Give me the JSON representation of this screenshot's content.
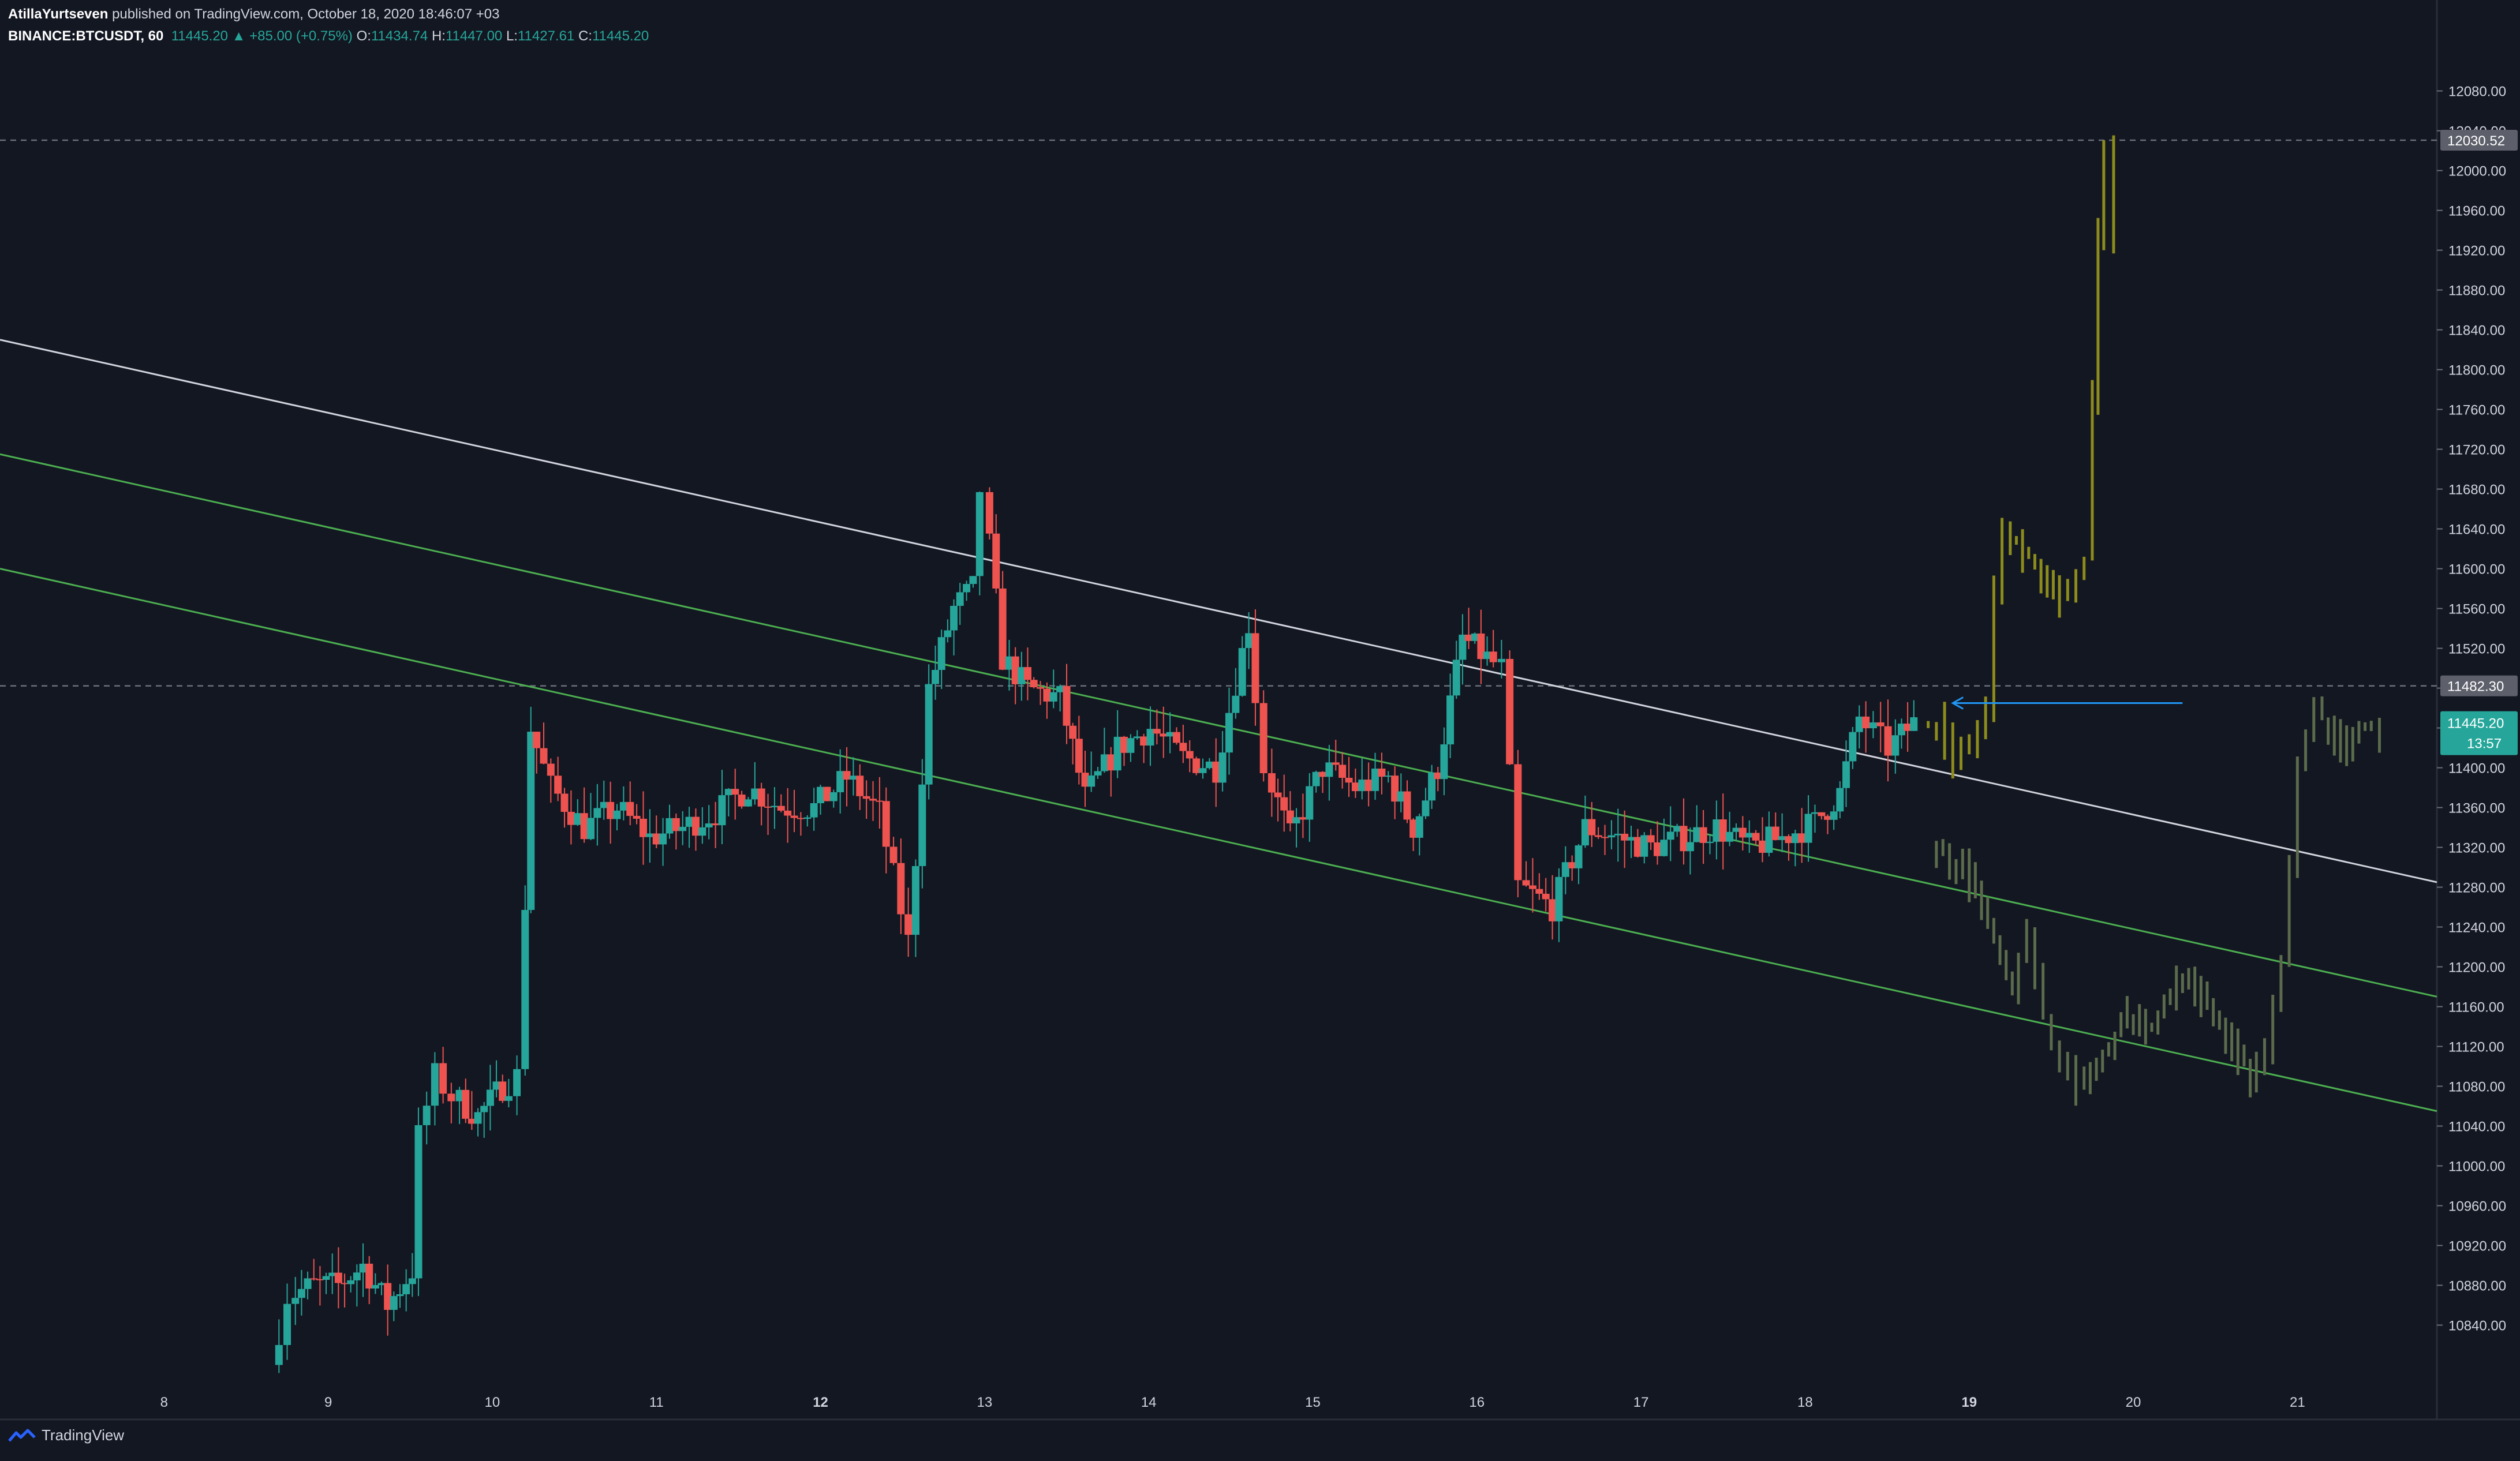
{
  "header": {
    "author": "AtillaYurtseven",
    "published": "published on TradingView.com, October 18, 2020 18:46:07 +03",
    "symbol": "BINANCE:BTCUSDT, 60",
    "last": "11445.20",
    "change": "▲ +85.00 (+0.75%)",
    "o_label": "O:",
    "o_val": "11434.74",
    "h_label": "H:",
    "h_val": "11447.00",
    "l_label": "L:",
    "l_val": "11427.61",
    "c_label": "C:",
    "c_val": "11445.20"
  },
  "footer": {
    "brand": "TradingView"
  },
  "colors": {
    "background": "#131722",
    "up": "#26a69a",
    "down": "#ef5350",
    "trend_white": "#d1d4dc",
    "trend_green": "#4caf50",
    "projection_olive": "#8c8c1c",
    "projection_grey": "#5b6b4b",
    "arrow_blue": "#2196f3"
  },
  "chart_data": {
    "type": "candlestick",
    "symbol": "BINANCE:BTCUSDT",
    "interval": "60",
    "ylim": [
      10780,
      12125
    ],
    "x_range_days": [
      7.0,
      21.85
    ],
    "y_ticks": [
      10840,
      10880,
      10920,
      10960,
      11000,
      11040,
      11080,
      11120,
      11160,
      11200,
      11240,
      11280,
      11320,
      11360,
      11400,
      11440,
      11480,
      11520,
      11560,
      11600,
      11640,
      11680,
      11720,
      11760,
      11800,
      11840,
      11880,
      11920,
      11960,
      12000,
      12040,
      12080
    ],
    "y_tick_labels": [
      "10840.00",
      "10880.00",
      "10920.00",
      "10960.00",
      "11000.00",
      "11040.00",
      "11080.00",
      "11120.00",
      "11160.00",
      "11200.00",
      "11240.00",
      "11280.00",
      "11320.00",
      "11360.00",
      "11400.00",
      "11440.00",
      "11480.00",
      "11520.00",
      "11560.00",
      "11600.00",
      "11640.00",
      "11680.00",
      "11720.00",
      "11760.00",
      "11800.00",
      "11840.00",
      "11880.00",
      "11920.00",
      "11960.00",
      "12000.00",
      "12040.00",
      "12080.00"
    ],
    "x_ticks": [
      8,
      9,
      10,
      11,
      12,
      13,
      14,
      15,
      16,
      17,
      18,
      19,
      20,
      21
    ],
    "x_tick_labels": [
      "8",
      "9",
      "10",
      "11",
      "12",
      "13",
      "14",
      "15",
      "16",
      "17",
      "18",
      "19",
      "20",
      "21"
    ],
    "x_tick_bold": [
      "12",
      "19"
    ],
    "horizontal_levels": [
      {
        "price": 12030.52,
        "label": "12030.52",
        "style": "dashed"
      },
      {
        "price": 11482.3,
        "label": "11482.30",
        "style": "dashed"
      }
    ],
    "current_price": {
      "price": 11445.2,
      "label": "11445.20",
      "countdown": "13:57"
    },
    "trendlines": [
      {
        "color": "white",
        "points": [
          [
            7.0,
            11830
          ],
          [
            21.85,
            11285
          ]
        ]
      },
      {
        "color": "green",
        "points": [
          [
            7.0,
            11715
          ],
          [
            21.85,
            11170
          ]
        ]
      },
      {
        "color": "green",
        "points": [
          [
            7.0,
            11600
          ],
          [
            21.85,
            11055
          ]
        ]
      }
    ],
    "arrow": {
      "from": [
        20.3,
        11465
      ],
      "to": [
        18.9,
        11465
      ]
    },
    "candle_anchors": [
      [
        8.7,
        10800
      ],
      [
        8.8,
        10870
      ],
      [
        8.95,
        10880
      ],
      [
        9.1,
        10880
      ],
      [
        9.25,
        10900
      ],
      [
        9.4,
        10860
      ],
      [
        9.55,
        10895
      ],
      [
        9.6,
        11030
      ],
      [
        9.7,
        11090
      ],
      [
        9.8,
        11070
      ],
      [
        9.95,
        11050
      ],
      [
        10.1,
        11080
      ],
      [
        10.2,
        11090
      ],
      [
        10.27,
        11440
      ],
      [
        10.4,
        11380
      ],
      [
        10.6,
        11340
      ],
      [
        10.8,
        11360
      ],
      [
        11.0,
        11330
      ],
      [
        11.2,
        11340
      ],
      [
        11.4,
        11355
      ],
      [
        11.6,
        11380
      ],
      [
        11.8,
        11360
      ],
      [
        12.0,
        11360
      ],
      [
        12.2,
        11390
      ],
      [
        12.4,
        11355
      ],
      [
        12.58,
        11225
      ],
      [
        12.7,
        11480
      ],
      [
        12.85,
        11560
      ],
      [
        12.97,
        11580
      ],
      [
        13.03,
        11680
      ],
      [
        13.15,
        11510
      ],
      [
        13.3,
        11480
      ],
      [
        13.5,
        11470
      ],
      [
        13.65,
        11370
      ],
      [
        13.85,
        11420
      ],
      [
        14.05,
        11440
      ],
      [
        14.25,
        11410
      ],
      [
        14.45,
        11400
      ],
      [
        14.65,
        11545
      ],
      [
        14.75,
        11400
      ],
      [
        14.9,
        11330
      ],
      [
        15.1,
        11400
      ],
      [
        15.3,
        11380
      ],
      [
        15.5,
        11390
      ],
      [
        15.65,
        11340
      ],
      [
        15.8,
        11400
      ],
      [
        15.95,
        11530
      ],
      [
        16.1,
        11510
      ],
      [
        16.2,
        11500
      ],
      [
        16.3,
        11280
      ],
      [
        16.5,
        11260
      ],
      [
        16.7,
        11340
      ],
      [
        16.9,
        11330
      ],
      [
        17.1,
        11320
      ],
      [
        17.3,
        11330
      ],
      [
        17.5,
        11340
      ],
      [
        17.7,
        11320
      ],
      [
        17.9,
        11330
      ],
      [
        18.1,
        11345
      ],
      [
        18.25,
        11375
      ],
      [
        18.37,
        11450
      ],
      [
        18.55,
        11420
      ],
      [
        18.7,
        11445
      ]
    ],
    "projection_olive": [
      [
        18.75,
        11440
      ],
      [
        18.85,
        11445
      ],
      [
        18.95,
        11410
      ],
      [
        19.05,
        11420
      ],
      [
        19.15,
        11460
      ],
      [
        19.2,
        11580
      ],
      [
        19.25,
        11640
      ],
      [
        19.4,
        11610
      ],
      [
        19.55,
        11570
      ],
      [
        19.65,
        11580
      ],
      [
        19.75,
        11610
      ],
      [
        19.82,
        11940
      ],
      [
        19.88,
        12030
      ],
      [
        19.92,
        11930
      ]
    ],
    "projection_grey": [
      [
        18.8,
        11320
      ],
      [
        19.0,
        11300
      ],
      [
        19.15,
        11240
      ],
      [
        19.3,
        11180
      ],
      [
        19.4,
        11230
      ],
      [
        19.5,
        11150
      ],
      [
        19.6,
        11100
      ],
      [
        19.7,
        11080
      ],
      [
        19.85,
        11110
      ],
      [
        20.0,
        11150
      ],
      [
        20.15,
        11140
      ],
      [
        20.3,
        11190
      ],
      [
        20.45,
        11170
      ],
      [
        20.6,
        11130
      ],
      [
        20.75,
        11090
      ],
      [
        20.85,
        11110
      ],
      [
        20.95,
        11200
      ],
      [
        21.05,
        11400
      ],
      [
        21.15,
        11460
      ],
      [
        21.3,
        11420
      ],
      [
        21.45,
        11445
      ],
      [
        21.55,
        11430
      ]
    ]
  }
}
